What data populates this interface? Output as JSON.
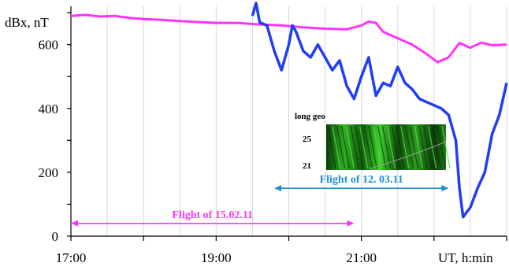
{
  "chart_data": {
    "type": "line",
    "ylabel": "dBx, nT",
    "xlabel": "UT, h:min",
    "xlim": [
      17.0,
      23.0
    ],
    "ylim": [
      0,
      720
    ],
    "x_ticks": [
      {
        "value": 17.0,
        "label": "17:00"
      },
      {
        "value": 19.0,
        "label": "19:00"
      },
      {
        "value": 21.0,
        "label": "21:00"
      }
    ],
    "y_ticks": [
      {
        "value": 0,
        "label": "0"
      },
      {
        "value": 200,
        "label": "200"
      },
      {
        "value": 400,
        "label": "400"
      },
      {
        "value": 600,
        "label": "600"
      }
    ],
    "grid": true,
    "series": [
      {
        "color": "#ff33ff",
        "x": [
          17.0,
          17.2,
          17.4,
          17.6,
          17.8,
          18.0,
          18.2,
          18.5,
          18.8,
          19.0,
          19.3,
          19.6,
          19.9,
          20.2,
          20.5,
          20.8,
          21.0,
          21.1,
          21.2,
          21.3,
          21.5,
          21.7,
          21.9,
          22.05,
          22.2,
          22.35,
          22.5,
          22.65,
          22.8,
          23.0
        ],
        "y": [
          690,
          693,
          688,
          690,
          684,
          680,
          678,
          674,
          670,
          668,
          668,
          663,
          660,
          654,
          650,
          648,
          660,
          672,
          668,
          640,
          620,
          600,
          570,
          545,
          560,
          605,
          590,
          606,
          598,
          600
        ]
      },
      {
        "color": "#1f3ff0",
        "x": [
          19.5,
          19.55,
          19.6,
          19.7,
          19.8,
          19.9,
          20.0,
          20.05,
          20.1,
          20.2,
          20.3,
          20.4,
          20.5,
          20.6,
          20.7,
          20.8,
          20.9,
          21.0,
          21.1,
          21.2,
          21.3,
          21.4,
          21.5,
          21.6,
          21.7,
          21.8,
          21.9,
          22.0,
          22.1,
          22.2,
          22.3,
          22.35,
          22.4,
          22.5,
          22.6,
          22.7,
          22.8,
          22.9,
          23.0
        ],
        "y": [
          690,
          730,
          670,
          660,
          580,
          520,
          600,
          660,
          640,
          580,
          560,
          600,
          560,
          520,
          550,
          470,
          430,
          500,
          560,
          440,
          480,
          470,
          530,
          480,
          460,
          430,
          420,
          410,
          400,
          380,
          300,
          150,
          60,
          90,
          150,
          200,
          320,
          380,
          480
        ]
      }
    ],
    "annotations": [
      {
        "text": "Flight of 15.02.11",
        "x_start": 17.0,
        "x_end": 20.9,
        "y": 40,
        "color": "#ff33ff"
      },
      {
        "text": "Flight of 12. 03.11",
        "x_start": 19.8,
        "x_end": 22.2,
        "y": 150,
        "color": "#1f8fcf"
      }
    ],
    "inset": {
      "title": "long geo",
      "labels": [
        "25",
        "21"
      ]
    }
  }
}
